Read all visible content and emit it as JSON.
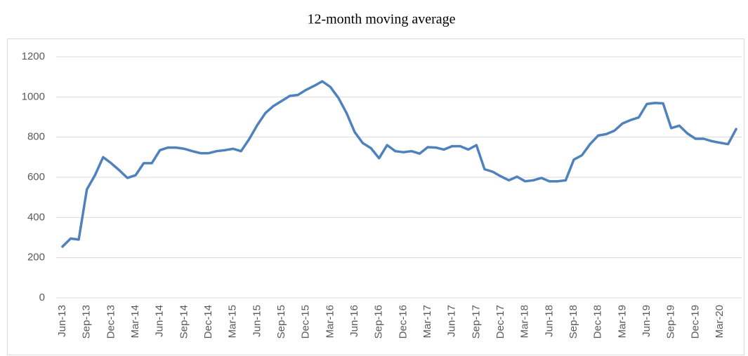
{
  "chart_data": {
    "type": "line",
    "title": "12-month moving average",
    "categories": [
      "Jun-13",
      null,
      null,
      "Sep-13",
      null,
      null,
      "Dec-13",
      null,
      null,
      "Mar-14",
      null,
      null,
      "Jun-14",
      null,
      null,
      "Sep-14",
      null,
      null,
      "Dec-14",
      null,
      null,
      "Mar-15",
      null,
      null,
      "Jun-15",
      null,
      null,
      "Sep-15",
      null,
      null,
      "Dec-15",
      null,
      null,
      "Mar-16",
      null,
      null,
      "Jun-16",
      null,
      null,
      "Sep-16",
      null,
      null,
      "Dec-16",
      null,
      null,
      "Mar-17",
      null,
      null,
      "Jun-17",
      null,
      null,
      "Sep-17",
      null,
      null,
      "Dec-17",
      null,
      null,
      "Mar-18",
      null,
      null,
      "Jun-18",
      null,
      null,
      "Sep-18",
      null,
      null,
      "Dec-18",
      null,
      null,
      "Mar-19",
      null,
      null,
      "Jun-19",
      null,
      null,
      "Sep-19",
      null,
      null,
      "Dec-19",
      null,
      null,
      "Mar-20",
      null,
      null
    ],
    "values": [
      255,
      295,
      290,
      540,
      610,
      700,
      670,
      635,
      597,
      610,
      670,
      670,
      735,
      748,
      748,
      742,
      730,
      720,
      720,
      730,
      735,
      742,
      730,
      790,
      860,
      920,
      955,
      980,
      1005,
      1010,
      1035,
      1055,
      1078,
      1050,
      995,
      920,
      825,
      770,
      745,
      695,
      760,
      730,
      725,
      730,
      718,
      750,
      748,
      738,
      755,
      755,
      738,
      760,
      640,
      628,
      605,
      585,
      603,
      580,
      585,
      597,
      580,
      580,
      585,
      688,
      710,
      765,
      808,
      815,
      832,
      868,
      885,
      898,
      965,
      970,
      968,
      845,
      857,
      818,
      792,
      792,
      780,
      772,
      765,
      840
    ],
    "color": "#4f81bd",
    "ylim": [
      0,
      1200
    ],
    "yticks": [
      0,
      200,
      400,
      600,
      800,
      1000,
      1200
    ],
    "grid": true
  }
}
